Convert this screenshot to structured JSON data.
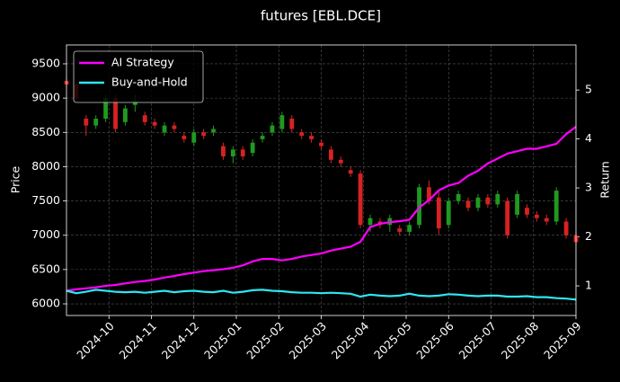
{
  "chart_data": {
    "type": "candlestick",
    "title": "futures [EBL.DCE]",
    "ylabel": "Price",
    "y2label": "Return",
    "xlim": [
      0,
      12
    ],
    "xticks": [
      {
        "value": 1,
        "label": "2024-10"
      },
      {
        "value": 2,
        "label": "2024-11"
      },
      {
        "value": 3,
        "label": "2024-12"
      },
      {
        "value": 4,
        "label": "2025-01"
      },
      {
        "value": 5,
        "label": "2025-02"
      },
      {
        "value": 6,
        "label": "2025-03"
      },
      {
        "value": 7,
        "label": "2025-04"
      },
      {
        "value": 8,
        "label": "2025-05"
      },
      {
        "value": 9,
        "label": "2025-06"
      },
      {
        "value": 10,
        "label": "2025-07"
      },
      {
        "value": 11,
        "label": "2025-08"
      },
      {
        "value": 12,
        "label": "2025-09"
      }
    ],
    "ylim": [
      5830,
      9775
    ],
    "yticks": [
      6000,
      6500,
      7000,
      7500,
      8000,
      8500,
      9000,
      9500
    ],
    "y2lim": [
      0.395,
      5.92
    ],
    "y2ticks": [
      1,
      2,
      3,
      4,
      5
    ],
    "grid": true,
    "legend": "upper left",
    "up_color": "#1f9a1f",
    "down_color": "#d62222",
    "ohlc": [
      [
        9250,
        9300,
        9150,
        9200
      ],
      [
        9200,
        9250,
        8950,
        9000
      ],
      [
        8700,
        8750,
        8450,
        8600
      ],
      [
        8600,
        8750,
        8550,
        8700
      ],
      [
        8700,
        9050,
        8650,
        9000
      ],
      [
        9000,
        9050,
        8500,
        8550
      ],
      [
        8650,
        8900,
        8600,
        8850
      ],
      [
        8900,
        9050,
        8800,
        8950
      ],
      [
        8750,
        8800,
        8600,
        8650
      ],
      [
        8650,
        8700,
        8550,
        8600
      ],
      [
        8500,
        8650,
        8450,
        8600
      ],
      [
        8600,
        8650,
        8500,
        8550
      ],
      [
        8450,
        8500,
        8350,
        8400
      ],
      [
        8350,
        8550,
        8300,
        8500
      ],
      [
        8500,
        8550,
        8400,
        8450
      ],
      [
        8500,
        8600,
        8450,
        8550
      ],
      [
        8300,
        8350,
        8100,
        8150
      ],
      [
        8150,
        8300,
        8050,
        8250
      ],
      [
        8250,
        8300,
        8100,
        8150
      ],
      [
        8200,
        8400,
        8150,
        8350
      ],
      [
        8400,
        8500,
        8350,
        8450
      ],
      [
        8500,
        8650,
        8450,
        8600
      ],
      [
        8550,
        8800,
        8500,
        8750
      ],
      [
        8700,
        8750,
        8500,
        8550
      ],
      [
        8500,
        8550,
        8400,
        8450
      ],
      [
        8450,
        8500,
        8350,
        8400
      ],
      [
        8350,
        8400,
        8250,
        8300
      ],
      [
        8250,
        8300,
        8050,
        8100
      ],
      [
        8100,
        8150,
        8000,
        8050
      ],
      [
        7950,
        8000,
        7850,
        7900
      ],
      [
        7900,
        7950,
        7100,
        7150
      ],
      [
        7150,
        7300,
        7050,
        7250
      ],
      [
        7200,
        7250,
        7100,
        7150
      ],
      [
        7150,
        7300,
        7050,
        7250
      ],
      [
        7100,
        7150,
        7000,
        7050
      ],
      [
        7050,
        7200,
        7000,
        7150
      ],
      [
        7150,
        7750,
        7100,
        7700
      ],
      [
        7700,
        7800,
        7450,
        7500
      ],
      [
        7550,
        7650,
        7000,
        7100
      ],
      [
        7150,
        7550,
        7100,
        7500
      ],
      [
        7500,
        7650,
        7450,
        7600
      ],
      [
        7500,
        7550,
        7350,
        7400
      ],
      [
        7400,
        7600,
        7350,
        7550
      ],
      [
        7550,
        7600,
        7400,
        7450
      ],
      [
        7450,
        7650,
        7400,
        7600
      ],
      [
        7500,
        7550,
        6950,
        7000
      ],
      [
        7300,
        7650,
        7250,
        7600
      ],
      [
        7400,
        7450,
        7250,
        7300
      ],
      [
        7300,
        7350,
        7200,
        7250
      ],
      [
        7250,
        7300,
        7150,
        7200
      ],
      [
        7200,
        7700,
        7150,
        7650
      ],
      [
        7200,
        7250,
        6950,
        7000
      ],
      [
        7000,
        7050,
        6850,
        6900
      ]
    ],
    "series": [
      {
        "name": "AI Strategy",
        "color": "#ff00ff",
        "axis": "y2",
        "values": [
          0.9,
          0.93,
          0.95,
          0.97,
          1.0,
          1.02,
          1.05,
          1.08,
          1.1,
          1.13,
          1.17,
          1.2,
          1.24,
          1.27,
          1.3,
          1.32,
          1.34,
          1.37,
          1.42,
          1.5,
          1.55,
          1.55,
          1.52,
          1.55,
          1.6,
          1.63,
          1.66,
          1.72,
          1.76,
          1.8,
          1.9,
          2.2,
          2.27,
          2.3,
          2.32,
          2.35,
          2.6,
          2.75,
          2.95,
          3.05,
          3.1,
          3.25,
          3.35,
          3.5,
          3.6,
          3.7,
          3.75,
          3.8,
          3.8,
          3.85,
          3.9,
          4.1,
          4.25
        ]
      },
      {
        "name": "Buy-and-Hold",
        "color": "#2ee6f2",
        "axis": "y2",
        "values": [
          0.9,
          0.85,
          0.88,
          0.92,
          0.9,
          0.88,
          0.87,
          0.88,
          0.86,
          0.88,
          0.9,
          0.87,
          0.89,
          0.9,
          0.88,
          0.87,
          0.9,
          0.86,
          0.88,
          0.91,
          0.92,
          0.9,
          0.89,
          0.87,
          0.86,
          0.86,
          0.85,
          0.86,
          0.85,
          0.84,
          0.78,
          0.82,
          0.8,
          0.79,
          0.8,
          0.84,
          0.8,
          0.79,
          0.8,
          0.83,
          0.82,
          0.8,
          0.79,
          0.8,
          0.8,
          0.78,
          0.78,
          0.79,
          0.77,
          0.77,
          0.75,
          0.74,
          0.72
        ]
      }
    ]
  }
}
